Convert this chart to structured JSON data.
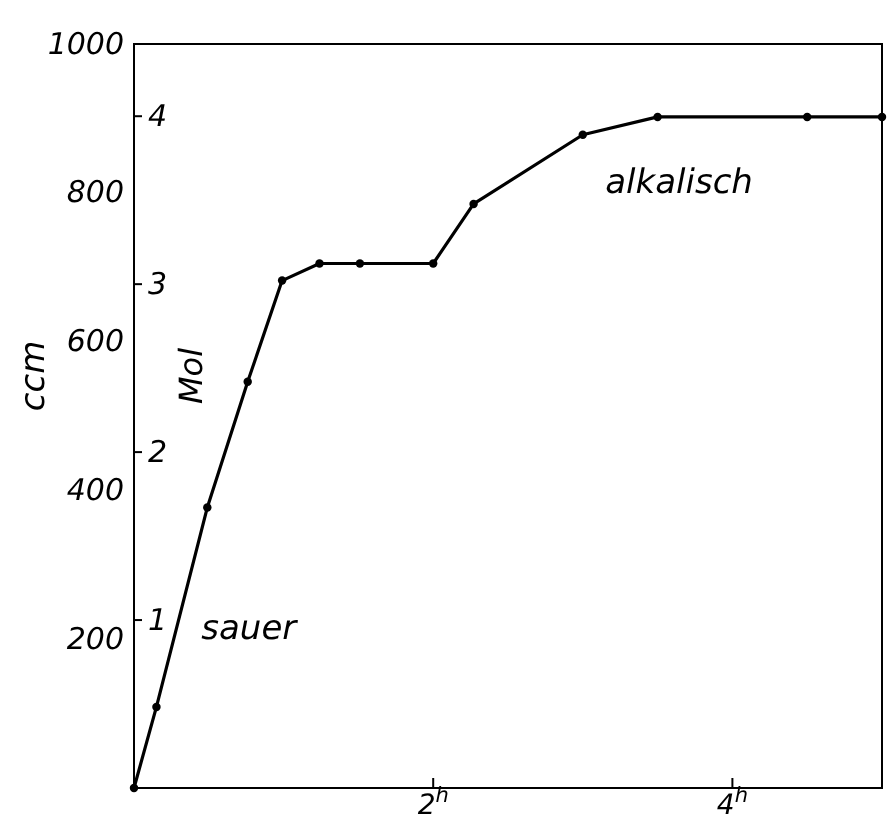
{
  "chart_data": {
    "type": "line",
    "xlabel": null,
    "ylabel": "ccm",
    "y2label": "Mol",
    "x": [
      0,
      0.15,
      0.49,
      0.76,
      0.99,
      1.24,
      1.51,
      2.0,
      2.27,
      3.0,
      3.5,
      4.5,
      5.0
    ],
    "series": [
      {
        "color": "#000000",
        "values": [
          0,
          109,
          377,
          546,
          682,
          705,
          705,
          705,
          785,
          878,
          902,
          902,
          902
        ]
      }
    ],
    "xlim": [
      0,
      5
    ],
    "xticks": [
      {
        "value": 2,
        "label": "2$^{h}$"
      },
      {
        "value": 4,
        "label": "4$^{h}$"
      }
    ],
    "ylim": [
      0,
      1000
    ],
    "yticks": [
      200,
      400,
      600,
      800,
      1000
    ],
    "y2lim": [
      0,
      4.43
    ],
    "y2ticks": [
      1,
      2,
      3,
      4
    ],
    "annotations": [
      "sauer",
      "alkalisch"
    ],
    "marker": "circle",
    "line_style": "solid",
    "grid": false
  }
}
